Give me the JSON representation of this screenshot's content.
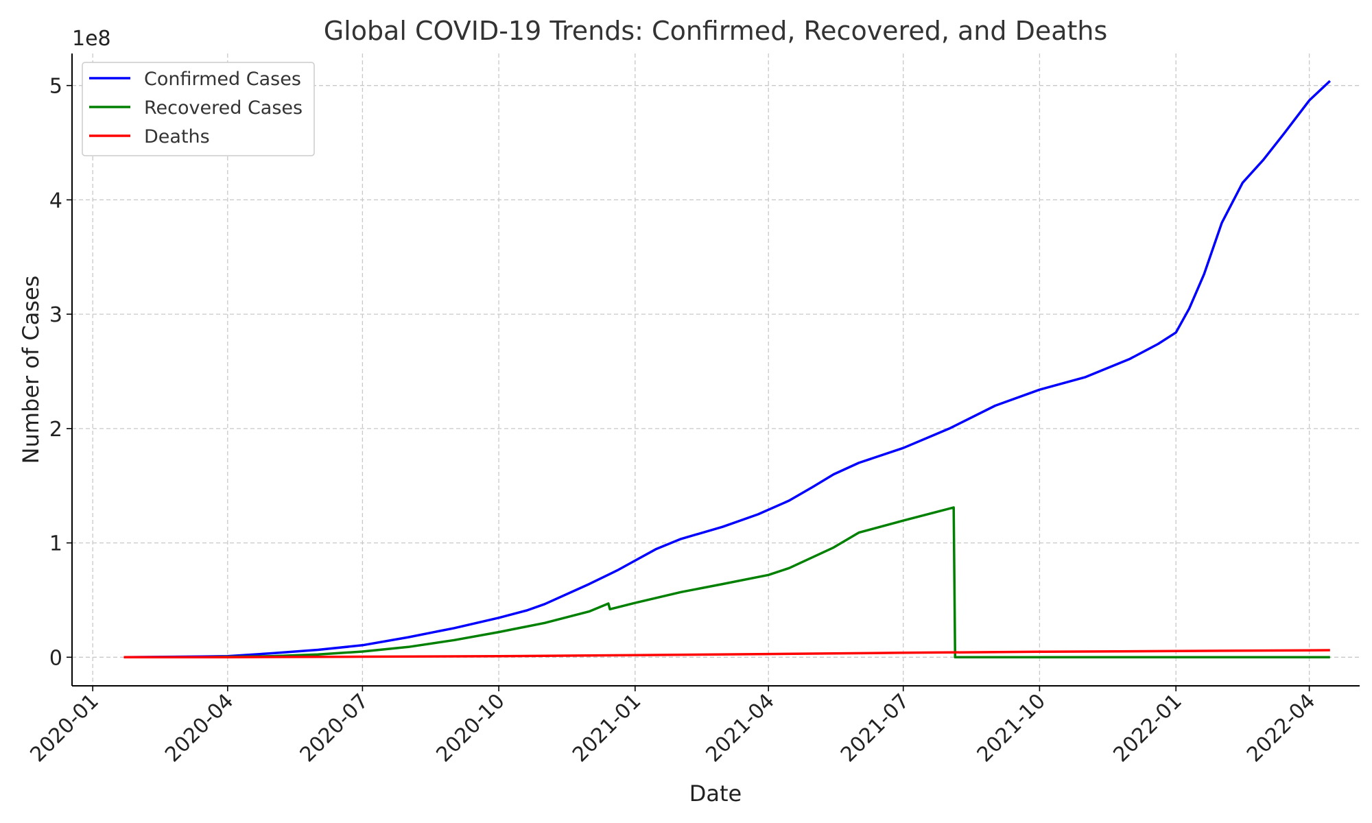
{
  "chart_data": {
    "type": "line",
    "title": "Global COVID-19 Trends: Confirmed, Recovered, and Deaths",
    "xlabel": "Date",
    "ylabel": "Number of Cases",
    "y_offset_label": "1e8",
    "x_range": [
      "2019-12-18",
      "2022-05-05"
    ],
    "ylim": [
      -0.25,
      5.28
    ],
    "grid": true,
    "legend_position": "top-left",
    "x_tick_labels": [
      "2020-01",
      "2020-04",
      "2020-07",
      "2020-10",
      "2021-01",
      "2021-04",
      "2021-07",
      "2021-10",
      "2022-01",
      "2022-04"
    ],
    "x_ticks": [
      "2020-01-01",
      "2020-04-01",
      "2020-07-01",
      "2020-10-01",
      "2021-01-01",
      "2021-04-01",
      "2021-07-01",
      "2021-10-01",
      "2022-01-01",
      "2022-04-01"
    ],
    "y_tick_labels": [
      "0",
      "1",
      "2",
      "3",
      "4",
      "5"
    ],
    "y_ticks": [
      0,
      1,
      2,
      3,
      4,
      5
    ],
    "series": [
      {
        "name": "Confirmed Cases",
        "color": "#0000ff",
        "x": [
          "2020-01-22",
          "2020-03-15",
          "2020-04-01",
          "2020-05-01",
          "2020-06-01",
          "2020-07-01",
          "2020-08-01",
          "2020-09-01",
          "2020-10-01",
          "2020-10-20",
          "2020-11-01",
          "2020-12-01",
          "2020-12-20",
          "2021-01-01",
          "2021-01-15",
          "2021-02-01",
          "2021-03-01",
          "2021-03-25",
          "2021-04-15",
          "2021-05-01",
          "2021-05-15",
          "2021-06-01",
          "2021-07-01",
          "2021-08-01",
          "2021-09-01",
          "2021-10-01",
          "2021-11-01",
          "2021-12-01",
          "2021-12-20",
          "2022-01-01",
          "2022-01-10",
          "2022-01-20",
          "2022-02-01",
          "2022-02-15",
          "2022-03-01",
          "2022-03-15",
          "2022-04-01",
          "2022-04-15"
        ],
        "y": [
          0,
          0.006,
          0.01,
          0.035,
          0.065,
          0.105,
          0.175,
          0.255,
          0.345,
          0.41,
          0.465,
          0.64,
          0.76,
          0.845,
          0.945,
          1.035,
          1.14,
          1.25,
          1.37,
          1.49,
          1.6,
          1.7,
          1.83,
          2.0,
          2.2,
          2.34,
          2.45,
          2.61,
          2.74,
          2.84,
          3.05,
          3.35,
          3.8,
          4.15,
          4.35,
          4.58,
          4.87,
          5.04
        ]
      },
      {
        "name": "Recovered Cases",
        "color": "#008000",
        "x": [
          "2020-01-22",
          "2020-03-15",
          "2020-04-01",
          "2020-05-01",
          "2020-06-01",
          "2020-07-01",
          "2020-08-01",
          "2020-09-01",
          "2020-10-01",
          "2020-11-01",
          "2020-12-01",
          "2020-12-14",
          "2020-12-15",
          "2021-01-01",
          "2021-02-01",
          "2021-03-01",
          "2021-04-01",
          "2021-04-15",
          "2021-05-15",
          "2021-06-01",
          "2021-07-01",
          "2021-08-04",
          "2021-08-05",
          "2021-10-01",
          "2022-01-01",
          "2022-04-15"
        ],
        "y": [
          0,
          0.001,
          0.003,
          0.01,
          0.025,
          0.05,
          0.09,
          0.15,
          0.22,
          0.3,
          0.4,
          0.47,
          0.42,
          0.475,
          0.57,
          0.64,
          0.72,
          0.78,
          0.96,
          1.09,
          1.195,
          1.31,
          0,
          0,
          0,
          0
        ]
      },
      {
        "name": "Deaths",
        "color": "#ff0000",
        "x": [
          "2020-01-22",
          "2020-04-01",
          "2020-07-01",
          "2020-10-01",
          "2021-01-01",
          "2021-04-01",
          "2021-07-01",
          "2021-10-01",
          "2022-01-01",
          "2022-04-15"
        ],
        "y": [
          0,
          0.0009,
          0.0051,
          0.01,
          0.018,
          0.028,
          0.039,
          0.048,
          0.054,
          0.062
        ]
      }
    ]
  }
}
